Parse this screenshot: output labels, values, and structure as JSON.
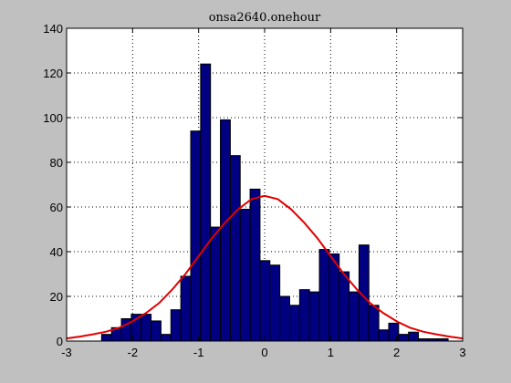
{
  "chart_data": {
    "type": "bar",
    "title": "onsa2640.onehour",
    "xlabel": "",
    "ylabel": "",
    "xlim": [
      -3,
      3
    ],
    "ylim": [
      0,
      140
    ],
    "grid": true,
    "x_ticks": [
      -3,
      -2,
      -1,
      0,
      1,
      2,
      3
    ],
    "y_ticks": [
      0,
      20,
      40,
      60,
      80,
      100,
      120,
      140
    ],
    "x_tick_labels": [
      "-3",
      "-2",
      "-1",
      "0",
      "1",
      "2",
      "3"
    ],
    "y_tick_labels": [
      "0",
      "20",
      "40",
      "60",
      "80",
      "100",
      "120",
      "140"
    ],
    "bar_color": "#000080",
    "bar_edge_color": "#000000",
    "curve_color": "#e00000",
    "background_color": "#c0c0c0",
    "plot_background_color": "#ffffff",
    "bins": [
      {
        "x0": -2.62,
        "x1": -2.47,
        "value": 0
      },
      {
        "x0": -2.47,
        "x1": -2.32,
        "value": 3
      },
      {
        "x0": -2.32,
        "x1": -2.17,
        "value": 6
      },
      {
        "x0": -2.17,
        "x1": -2.02,
        "value": 10
      },
      {
        "x0": -2.02,
        "x1": -1.87,
        "value": 12
      },
      {
        "x0": -1.87,
        "x1": -1.72,
        "value": 12
      },
      {
        "x0": -1.72,
        "x1": -1.57,
        "value": 9
      },
      {
        "x0": -1.57,
        "x1": -1.42,
        "value": 3
      },
      {
        "x0": -1.42,
        "x1": -1.27,
        "value": 14
      },
      {
        "x0": -1.27,
        "x1": -1.12,
        "value": 29
      },
      {
        "x0": -1.12,
        "x1": -0.97,
        "value": 94
      },
      {
        "x0": -0.97,
        "x1": -0.82,
        "value": 124
      },
      {
        "x0": -0.82,
        "x1": -0.67,
        "value": 51
      },
      {
        "x0": -0.67,
        "x1": -0.52,
        "value": 99
      },
      {
        "x0": -0.52,
        "x1": -0.37,
        "value": 83
      },
      {
        "x0": -0.37,
        "x1": -0.22,
        "value": 59
      },
      {
        "x0": -0.22,
        "x1": -0.07,
        "value": 68
      },
      {
        "x0": -0.07,
        "x1": 0.08,
        "value": 36
      },
      {
        "x0": 0.08,
        "x1": 0.23,
        "value": 34
      },
      {
        "x0": 0.23,
        "x1": 0.38,
        "value": 20
      },
      {
        "x0": 0.38,
        "x1": 0.53,
        "value": 16
      },
      {
        "x0": 0.53,
        "x1": 0.68,
        "value": 23
      },
      {
        "x0": 0.68,
        "x1": 0.83,
        "value": 22
      },
      {
        "x0": 0.83,
        "x1": 0.98,
        "value": 41
      },
      {
        "x0": 0.98,
        "x1": 1.13,
        "value": 39
      },
      {
        "x0": 1.13,
        "x1": 1.28,
        "value": 31
      },
      {
        "x0": 1.28,
        "x1": 1.43,
        "value": 22
      },
      {
        "x0": 1.43,
        "x1": 1.58,
        "value": 43
      },
      {
        "x0": 1.58,
        "x1": 1.73,
        "value": 16
      },
      {
        "x0": 1.73,
        "x1": 1.88,
        "value": 5
      },
      {
        "x0": 1.88,
        "x1": 2.03,
        "value": 8
      },
      {
        "x0": 2.03,
        "x1": 2.18,
        "value": 3
      },
      {
        "x0": 2.18,
        "x1": 2.33,
        "value": 4
      },
      {
        "x0": 2.33,
        "x1": 2.48,
        "value": 1
      },
      {
        "x0": 2.48,
        "x1": 2.63,
        "value": 1
      },
      {
        "x0": 2.63,
        "x1": 2.78,
        "value": 1
      }
    ],
    "curve_points": [
      {
        "x": -3.0,
        "y": 1.2
      },
      {
        "x": -2.8,
        "y": 2.0
      },
      {
        "x": -2.6,
        "y": 3.0
      },
      {
        "x": -2.4,
        "y": 4.2
      },
      {
        "x": -2.2,
        "y": 6.0
      },
      {
        "x": -2.0,
        "y": 8.8
      },
      {
        "x": -1.8,
        "y": 12.5
      },
      {
        "x": -1.6,
        "y": 17.0
      },
      {
        "x": -1.4,
        "y": 23.0
      },
      {
        "x": -1.2,
        "y": 30.0
      },
      {
        "x": -1.0,
        "y": 38.0
      },
      {
        "x": -0.8,
        "y": 46.0
      },
      {
        "x": -0.6,
        "y": 53.0
      },
      {
        "x": -0.4,
        "y": 59.0
      },
      {
        "x": -0.2,
        "y": 63.5
      },
      {
        "x": 0.0,
        "y": 65.0
      },
      {
        "x": 0.2,
        "y": 63.5
      },
      {
        "x": 0.4,
        "y": 59.0
      },
      {
        "x": 0.6,
        "y": 53.0
      },
      {
        "x": 0.8,
        "y": 46.0
      },
      {
        "x": 1.0,
        "y": 38.0
      },
      {
        "x": 1.2,
        "y": 30.0
      },
      {
        "x": 1.4,
        "y": 23.0
      },
      {
        "x": 1.6,
        "y": 17.0
      },
      {
        "x": 1.8,
        "y": 12.5
      },
      {
        "x": 2.0,
        "y": 8.8
      },
      {
        "x": 2.2,
        "y": 6.0
      },
      {
        "x": 2.4,
        "y": 4.2
      },
      {
        "x": 2.6,
        "y": 3.0
      },
      {
        "x": 2.8,
        "y": 2.0
      },
      {
        "x": 3.0,
        "y": 1.2
      }
    ]
  }
}
